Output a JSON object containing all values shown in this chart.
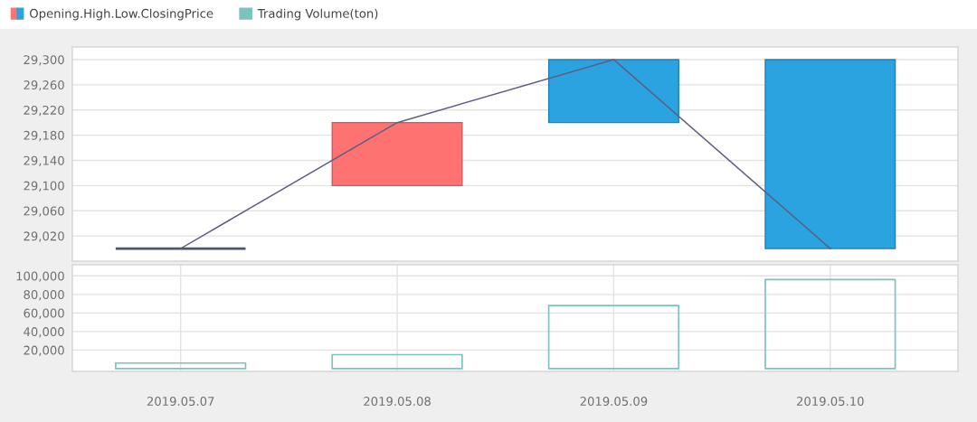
{
  "chart_data": [
    {
      "type": "candlestick",
      "categories": [
        "2019.05.07",
        "2019.05.08",
        "2019.05.09",
        "2019.05.10"
      ],
      "series": [
        {
          "type": "candlestick",
          "name": "Opening.High.Low.ClosingPrice",
          "ohlc": [
            [
              29000,
              29000,
              29000,
              29000
            ],
            [
              29100,
              29200,
              29100,
              29200
            ],
            [
              29300,
              29300,
              29200,
              29200
            ],
            [
              29300,
              29300,
              29000,
              29000
            ]
          ],
          "colors": [
            "#4a5570",
            "#ff7272",
            "#2ba3e0",
            "#2ba3e0"
          ]
        },
        {
          "type": "line",
          "color": "#5c5f80",
          "values": [
            29000,
            29200,
            29300,
            29000
          ]
        }
      ],
      "ylim": [
        28980,
        29320
      ],
      "yticks": [
        {
          "value": 29020,
          "label": "29,020"
        },
        {
          "value": 29060,
          "label": "29,060"
        },
        {
          "value": 29100,
          "label": "29,100"
        },
        {
          "value": 29140,
          "label": "29,140"
        },
        {
          "value": 29180,
          "label": "29,180"
        },
        {
          "value": 29220,
          "label": "29,220"
        },
        {
          "value": 29260,
          "label": "29,260"
        },
        {
          "value": 29300,
          "label": "29,300"
        }
      ],
      "tick_labels": "y",
      "grid": "y",
      "legend": "top left"
    },
    {
      "type": "bar",
      "categories": [
        "2019.05.07",
        "2019.05.08",
        "2019.05.09",
        "2019.05.10"
      ],
      "series": [
        {
          "name": "Trading Volume(ton)",
          "color": "#7cc2bd",
          "values": [
            6000,
            15000,
            68000,
            96000
          ]
        }
      ],
      "ylim": [
        -3000,
        112000
      ],
      "yticks": [
        {
          "value": 20000,
          "label": "20,000"
        },
        {
          "value": 40000,
          "label": "40,000"
        },
        {
          "value": 60000,
          "label": "60,000"
        },
        {
          "value": 80000,
          "label": "80,000"
        },
        {
          "value": 100000,
          "label": "100,000"
        }
      ],
      "grid": true,
      "legend": "top left"
    }
  ]
}
